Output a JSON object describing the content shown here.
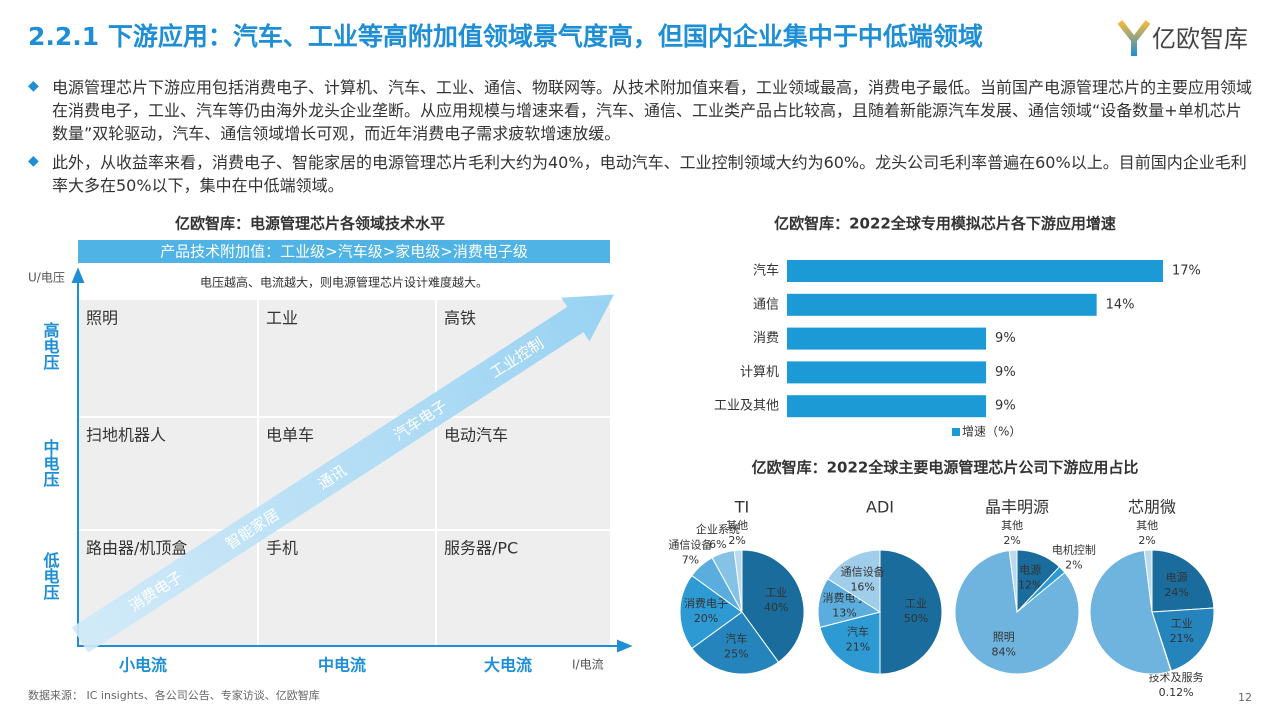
{
  "header": {
    "title": "2.2.1 下游应用：汽车、工业等高附加值领域景气度高，但国内企业集中于中低端领域",
    "logo": "亿欧智库"
  },
  "bullets": [
    "电源管理芯片下游应用包括消费电子、计算机、汽车、工业、通信、物联网等。从技术附加值来看，工业领域最高，消费电子最低。当前国产电源管理芯片的主要应用领域在消费电子，工业、汽车等仍由海外龙头企业垄断。从应用规模与增速来看，汽车、通信、工业类产品占比较高，且随着新能源汽车发展、通信领域“设备数量+单机芯片数量”双轮驱动，汽车、通信领域增长可观，而近年消费电子需求疲软增速放缓。",
    "此外，从收益率来看，消费电子、智能家居的电源管理芯片毛利大约为40%，电动汽车、工业控制领域大约为60%。龙头公司毛利率普遍在60%以上。目前国内企业毛利率大多在50%以下，集中在中低端领域。"
  ],
  "matrix": {
    "title": "亿欧智库：电源管理芯片各领域技术水平",
    "banner": "产品技术附加值：工业级>汽车级>家电级>消费电子级",
    "note": "电压越高、电流越大，则电源管理芯片设计难度越大。",
    "y_axis": "U/电压",
    "x_axis": "I/电流",
    "rows": [
      "高电压",
      "中电压",
      "低电压"
    ],
    "columns": [
      "小电流",
      "中电流",
      "大电流"
    ],
    "cells": [
      [
        "照明",
        "工业",
        "高铁"
      ],
      [
        "扫地机器人",
        "电单车",
        "电动汽车"
      ],
      [
        "路由器/机顶盒",
        "手机",
        "服务器/PC"
      ]
    ],
    "arrow_labels": [
      "消费电子",
      "智能家居",
      "通讯",
      "汽车电子",
      "工业控制"
    ]
  },
  "pie_section": {
    "title": "亿欧智库：2022全球主要电源管理芯片公司下游应用占比"
  },
  "chart_data": [
    {
      "type": "hbar",
      "title": "亿欧智库：2022全球专用模拟芯片各下游应用增速",
      "categories": [
        "汽车",
        "通信",
        "消费",
        "计算机",
        "工业及其他"
      ],
      "series": [
        {
          "name": "增速（%）",
          "color": "#1c9ad6",
          "values": [
            17,
            14,
            9,
            9,
            9
          ],
          "value_labels": [
            "17%",
            "14%",
            "9%",
            "9%",
            "9%"
          ]
        }
      ]
    },
    {
      "type": "pie",
      "title": "TI",
      "categories": [
        "工业",
        "汽车",
        "消费电子",
        "通信设备",
        "企业系统",
        "其他"
      ],
      "values": [
        40,
        25,
        20,
        7,
        6,
        2
      ],
      "value_labels": [
        "40%",
        "25%",
        "20%",
        "7%",
        "6%",
        "2%"
      ],
      "colors": [
        "#1a6c9c",
        "#2584bb",
        "#2d9ad3",
        "#5aaddd",
        "#86c2e6",
        "#b9daef"
      ]
    },
    {
      "type": "pie",
      "title": "ADI",
      "categories": [
        "工业",
        "汽车",
        "消费电子",
        "通信设备"
      ],
      "values": [
        50,
        21,
        13,
        16
      ],
      "value_labels": [
        "50%",
        "21%",
        "13%",
        "16%"
      ],
      "colors": [
        "#1a6c9c",
        "#2d9ad3",
        "#5aaddd",
        "#9fcdea"
      ]
    },
    {
      "type": "pie",
      "title": "晶丰明源",
      "categories": [
        "电源",
        "电机控制",
        "照明",
        "其他"
      ],
      "values": [
        12,
        2,
        84,
        2
      ],
      "value_labels": [
        "12%",
        "2%",
        "84%",
        "2%"
      ],
      "colors": [
        "#1a6c9c",
        "#2d9ad3",
        "#6fb4de",
        "#b9daef"
      ]
    },
    {
      "type": "pie",
      "title": "芯朋微",
      "categories": [
        "电源",
        "工业",
        "技术及服务",
        null,
        "其他"
      ],
      "values": [
        24,
        21,
        0.12,
        53,
        2
      ],
      "value_labels": [
        "24%",
        "21%",
        "0.12%",
        null,
        "2%"
      ],
      "colors": [
        "#1a6c9c",
        "#2584bb",
        "#3b9fd6",
        "#6fb4de",
        "#b9daef"
      ]
    }
  ],
  "footer": {
    "source": "数据来源： IC insights、各公司公告、专家访谈、亿欧智库",
    "page": "12"
  }
}
